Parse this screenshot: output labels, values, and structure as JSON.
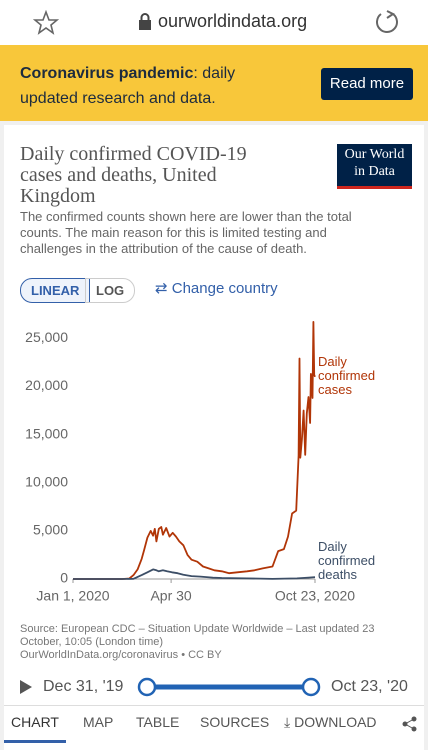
{
  "browser": {
    "url": "ourworldindata.org"
  },
  "banner": {
    "title": "Coronavirus pandemic",
    "text": ": daily updated research and data.",
    "button": "Read more"
  },
  "chart_data": {
    "type": "line",
    "title": "Daily confirmed COVID-19 cases and deaths, United Kingdom",
    "subtitle": "The confirmed counts shown here are lower than the total counts. The main reason for this is limited testing and challenges in the attribution of the cause of death.",
    "logo": [
      "Our World",
      "in Data"
    ],
    "scale_options": [
      "LINEAR",
      "LOG"
    ],
    "change_country": "Change country",
    "xlim": [
      "2020-01-01",
      "2020-10-23"
    ],
    "xticks": [
      {
        "value": "2020-01-01",
        "label": "Jan 1, 2020"
      },
      {
        "value": "2020-04-30",
        "label": "Apr 30"
      },
      {
        "value": "2020-10-23",
        "label": "Oct 23, 2020"
      }
    ],
    "ylim": [
      0,
      27000
    ],
    "yticks": [
      0,
      {
        "value": 5000,
        "label": "5,000"
      },
      {
        "value": 10000,
        "label": "10,000"
      },
      {
        "value": 15000,
        "label": "15,000"
      },
      {
        "value": 20000,
        "label": "20,000"
      },
      {
        "value": 25000,
        "label": "25,000"
      }
    ],
    "grid": false,
    "series": [
      {
        "name": "Daily confirmed cases",
        "color": "#b13507",
        "x": [
          "2020-01-01",
          "2020-02-01",
          "2020-03-01",
          "2020-03-10",
          "2020-03-15",
          "2020-03-20",
          "2020-03-25",
          "2020-03-28",
          "2020-04-01",
          "2020-04-05",
          "2020-04-08",
          "2020-04-10",
          "2020-04-12",
          "2020-04-15",
          "2020-04-18",
          "2020-04-20",
          "2020-04-24",
          "2020-04-28",
          "2020-05-02",
          "2020-05-06",
          "2020-05-10",
          "2020-05-15",
          "2020-05-20",
          "2020-05-25",
          "2020-06-01",
          "2020-06-08",
          "2020-06-15",
          "2020-06-22",
          "2020-07-01",
          "2020-07-10",
          "2020-07-20",
          "2020-08-01",
          "2020-08-10",
          "2020-08-20",
          "2020-09-01",
          "2020-09-08",
          "2020-09-15",
          "2020-09-20",
          "2020-09-25",
          "2020-09-30",
          "2020-10-03",
          "2020-10-04",
          "2020-10-05",
          "2020-10-07",
          "2020-10-09",
          "2020-10-11",
          "2020-10-13",
          "2020-10-15",
          "2020-10-17",
          "2020-10-18",
          "2020-10-20",
          "2020-10-21",
          "2020-10-22",
          "2020-10-23"
        ],
        "values": [
          0,
          0,
          0,
          50,
          400,
          1000,
          2100,
          3000,
          4300,
          5000,
          4500,
          5200,
          3900,
          5200,
          5400,
          4600,
          5300,
          4400,
          4800,
          4400,
          3900,
          3500,
          2500,
          2000,
          1800,
          1300,
          1100,
          900,
          800,
          600,
          700,
          800,
          900,
          1100,
          1300,
          2900,
          3100,
          4400,
          6800,
          7100,
          12800,
          22900,
          12600,
          14500,
          17500,
          12900,
          17200,
          18900,
          16200,
          21300,
          18800,
          26700,
          21200,
          21000
        ]
      },
      {
        "name": "Daily confirmed deaths",
        "color": "#3c4e66",
        "x": [
          "2020-01-01",
          "2020-03-01",
          "2020-03-15",
          "2020-03-25",
          "2020-04-01",
          "2020-04-08",
          "2020-04-12",
          "2020-04-15",
          "2020-04-20",
          "2020-04-25",
          "2020-05-01",
          "2020-05-08",
          "2020-05-15",
          "2020-05-25",
          "2020-06-05",
          "2020-06-20",
          "2020-07-01",
          "2020-08-01",
          "2020-09-01",
          "2020-10-01",
          "2020-10-15",
          "2020-10-23"
        ],
        "values": [
          0,
          0,
          20,
          400,
          700,
          1000,
          900,
          800,
          900,
          800,
          700,
          600,
          450,
          300,
          250,
          150,
          100,
          60,
          10,
          60,
          150,
          200
        ]
      }
    ],
    "source": "Source: European CDC – Situation Update Worldwide – Last updated 23 October, 10:05 (London time)",
    "license": "OurWorldInData.org/coronavirus • CC BY",
    "time_range": [
      "Dec 31, '19",
      "Oct 23, '20"
    ],
    "tabs": [
      "CHART",
      "MAP",
      "TABLE",
      "SOURCES",
      "DOWNLOAD"
    ]
  }
}
